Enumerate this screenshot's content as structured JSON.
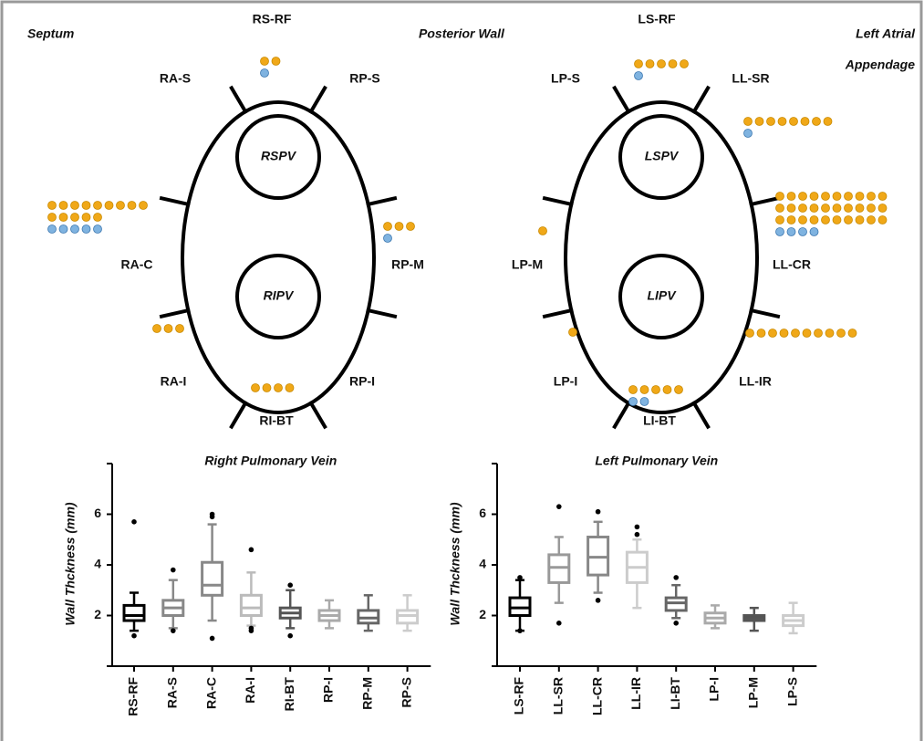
{
  "header": {
    "left": "Septum",
    "center": "Posterior Wall",
    "right": [
      "Left Atrial",
      "Appendage"
    ]
  },
  "diagrams": [
    {
      "veins": [
        "RSPV",
        "RIPV"
      ],
      "sites": [
        {
          "label": "RS-RF",
          "orange": 2,
          "blue": 1
        },
        {
          "label": "RA-S",
          "orange": 0,
          "blue": 0
        },
        {
          "label": "RP-S",
          "orange": 0,
          "blue": 0
        },
        {
          "label": "RA-C",
          "orange": 14,
          "blue": 5
        },
        {
          "label": "RP-M",
          "orange": 3,
          "blue": 1
        },
        {
          "label": "RA-I",
          "orange": 3,
          "blue": 0
        },
        {
          "label": "RP-I",
          "orange": 0,
          "blue": 0
        },
        {
          "label": "RI-BT",
          "orange": 4,
          "blue": 0
        }
      ]
    },
    {
      "veins": [
        "LSPV",
        "LIPV"
      ],
      "sites": [
        {
          "label": "LS-RF",
          "orange": 5,
          "blue": 1
        },
        {
          "label": "LP-S",
          "orange": 0,
          "blue": 0
        },
        {
          "label": "LL-SR",
          "orange": 8,
          "blue": 1
        },
        {
          "label": "LP-M",
          "orange": 1,
          "blue": 0
        },
        {
          "label": "LL-CR",
          "orange": 30,
          "blue": 4
        },
        {
          "label": "LP-I",
          "orange": 1,
          "blue": 0
        },
        {
          "label": "LL-IR",
          "orange": 10,
          "blue": 0
        },
        {
          "label": "LI-BT",
          "orange": 5,
          "blue": 2
        }
      ]
    }
  ],
  "chart_data": [
    {
      "type": "box",
      "title": "Right Pulmonary Vein",
      "y_label": "Wall Thckness (mm)",
      "categories": [
        "RS-RF",
        "RA-S",
        "RA-C",
        "RA-I",
        "RI-BT",
        "RP-I",
        "RP-M",
        "RP-S"
      ],
      "ylim": [
        0,
        8
      ],
      "yticks": [
        2,
        4,
        6
      ],
      "boxes": [
        {
          "min": 1.4,
          "q1": 1.8,
          "median": 2.0,
          "q3": 2.4,
          "max": 2.9,
          "outliers": [
            5.7,
            1.2
          ],
          "color": "#000000"
        },
        {
          "min": 1.5,
          "q1": 2.0,
          "median": 2.3,
          "q3": 2.6,
          "max": 3.4,
          "outliers": [
            3.8,
            1.4
          ],
          "color": "#888888"
        },
        {
          "min": 1.8,
          "q1": 2.8,
          "median": 3.2,
          "q3": 4.1,
          "max": 5.6,
          "outliers": [
            6.0,
            5.9,
            1.1
          ],
          "color": "#888888"
        },
        {
          "min": 1.6,
          "q1": 2.0,
          "median": 2.3,
          "q3": 2.8,
          "max": 3.7,
          "outliers": [
            4.6,
            1.5,
            1.4
          ],
          "color": "#bbbbbb"
        },
        {
          "min": 1.5,
          "q1": 1.9,
          "median": 2.1,
          "q3": 2.3,
          "max": 3.0,
          "outliers": [
            3.2,
            1.2
          ],
          "color": "#555555"
        },
        {
          "min": 1.5,
          "q1": 1.8,
          "median": 2.0,
          "q3": 2.2,
          "max": 2.6,
          "outliers": [],
          "color": "#aaaaaa"
        },
        {
          "min": 1.4,
          "q1": 1.7,
          "median": 1.9,
          "q3": 2.2,
          "max": 2.8,
          "outliers": [],
          "color": "#666666"
        },
        {
          "min": 1.4,
          "q1": 1.7,
          "median": 2.0,
          "q3": 2.2,
          "max": 2.8,
          "outliers": [],
          "color": "#cccccc"
        }
      ]
    },
    {
      "type": "box",
      "title": "Left Pulmonary Vein",
      "y_label": "Wall Thckness (mm)",
      "categories": [
        "LS-RF",
        "LL-SR",
        "LL-CR",
        "LL-IR",
        "LI-BT",
        "LP-I",
        "LP-M",
        "LP-S"
      ],
      "ylim": [
        0,
        8
      ],
      "yticks": [
        2,
        4,
        6
      ],
      "boxes": [
        {
          "min": 1.4,
          "q1": 2.0,
          "median": 2.3,
          "q3": 2.7,
          "max": 3.4,
          "outliers": [
            3.5,
            1.4
          ],
          "color": "#000000"
        },
        {
          "min": 2.5,
          "q1": 3.3,
          "median": 3.9,
          "q3": 4.4,
          "max": 5.1,
          "outliers": [
            6.3,
            1.7
          ],
          "color": "#999999"
        },
        {
          "min": 2.9,
          "q1": 3.6,
          "median": 4.3,
          "q3": 5.1,
          "max": 5.7,
          "outliers": [
            6.1,
            2.6
          ],
          "color": "#888888"
        },
        {
          "min": 2.3,
          "q1": 3.3,
          "median": 3.9,
          "q3": 4.5,
          "max": 5.0,
          "outliers": [
            5.5,
            5.2
          ],
          "color": "#cccccc"
        },
        {
          "min": 1.9,
          "q1": 2.2,
          "median": 2.5,
          "q3": 2.7,
          "max": 3.2,
          "outliers": [
            3.5,
            1.7
          ],
          "color": "#666666"
        },
        {
          "min": 1.5,
          "q1": 1.7,
          "median": 1.9,
          "q3": 2.1,
          "max": 2.4,
          "outliers": [],
          "color": "#aaaaaa"
        },
        {
          "min": 1.4,
          "q1": 1.8,
          "median": 1.9,
          "q3": 2.0,
          "max": 2.3,
          "outliers": [],
          "color": "#555555"
        },
        {
          "min": 1.3,
          "q1": 1.6,
          "median": 1.8,
          "q3": 2.0,
          "max": 2.5,
          "outliers": [],
          "color": "#cccccc"
        }
      ]
    }
  ]
}
